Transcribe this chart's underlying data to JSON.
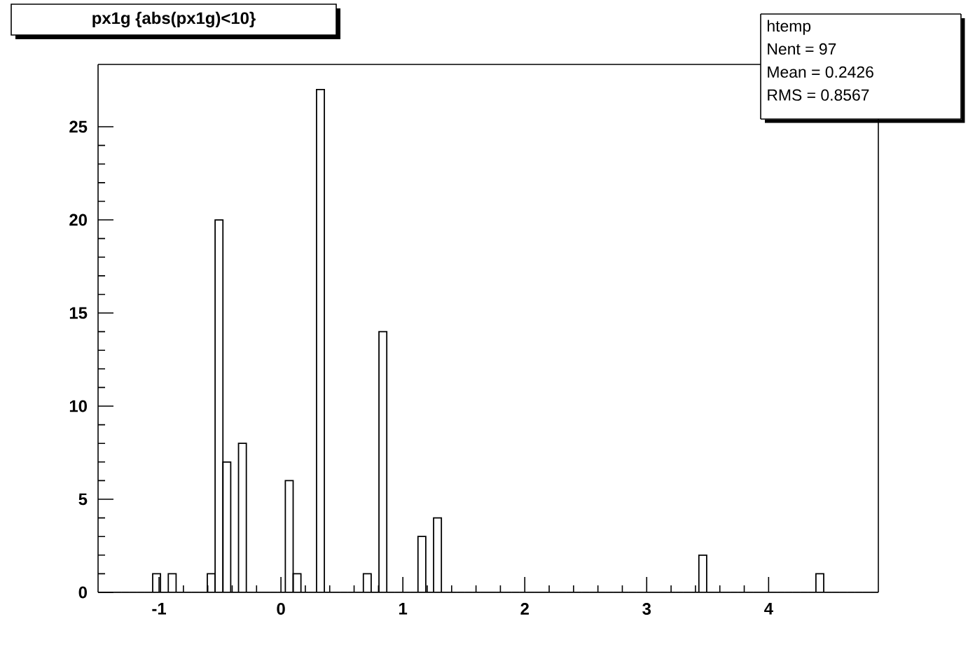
{
  "chart_data": {
    "type": "histogram",
    "title": "px1g {abs(px1g)<10}",
    "bins": [
      -1.5,
      -1.436,
      -1.372,
      -1.308,
      -1.244,
      -1.18,
      -1.116,
      -1.052,
      -0.988,
      -0.924,
      -0.86,
      -0.796,
      -0.732,
      -0.668,
      -0.604,
      -0.54,
      -0.476,
      -0.412,
      -0.348,
      -0.284,
      -0.22,
      -0.156,
      -0.092,
      -0.028,
      0.036,
      0.1,
      0.164,
      0.228,
      0.292,
      0.356,
      0.42,
      0.484,
      0.548,
      0.612,
      0.676,
      0.74,
      0.804,
      0.868,
      0.932,
      0.996,
      1.06,
      1.124,
      1.188,
      1.252,
      1.316,
      1.38,
      1.444,
      1.508,
      1.572,
      1.636,
      1.7,
      1.764,
      1.828,
      1.892,
      1.956,
      2.02,
      2.084,
      2.148,
      2.212,
      2.276,
      2.34,
      2.404,
      2.468,
      2.532,
      2.596,
      2.66,
      2.724,
      2.788,
      2.852,
      2.916,
      2.98,
      3.044,
      3.108,
      3.172,
      3.236,
      3.3,
      3.364,
      3.428,
      3.492,
      3.556,
      3.62,
      3.684,
      3.748,
      3.812,
      3.876,
      3.94,
      4.004,
      4.068,
      4.132,
      4.196,
      4.26,
      4.324,
      4.388,
      4.452,
      4.516,
      4.58,
      4.644,
      4.708,
      4.772,
      4.836,
      4.9
    ],
    "values": [
      0,
      0,
      0,
      0,
      0,
      0,
      0,
      1,
      0,
      1,
      0,
      0,
      0,
      0,
      1,
      20,
      7,
      0,
      8,
      0,
      0,
      0,
      0,
      0,
      6,
      1,
      0,
      0,
      27,
      0,
      0,
      0,
      0,
      0,
      1,
      0,
      14,
      0,
      0,
      0,
      0,
      3,
      0,
      4,
      0,
      0,
      0,
      0,
      0,
      0,
      0,
      0,
      0,
      0,
      0,
      0,
      0,
      0,
      0,
      0,
      0,
      0,
      0,
      0,
      0,
      0,
      0,
      0,
      0,
      0,
      0,
      0,
      0,
      0,
      0,
      0,
      0,
      2,
      0,
      0,
      0,
      0,
      0,
      0,
      0,
      0,
      0,
      0,
      0,
      0,
      0,
      0,
      1,
      0,
      0,
      0,
      0,
      0,
      0,
      0
    ],
    "color": "#000000",
    "xlim": [
      -1.5,
      4.9
    ],
    "xticks": [
      -1,
      0,
      1,
      2,
      3,
      4
    ],
    "ylim": [
      0,
      28.35
    ],
    "yticks": [
      0,
      5,
      10,
      15,
      20,
      25
    ],
    "grid": false,
    "annotations": [
      "htemp",
      "Nent = 97",
      "Mean  = 0.2426",
      "RMS   = 0.8567"
    ]
  }
}
